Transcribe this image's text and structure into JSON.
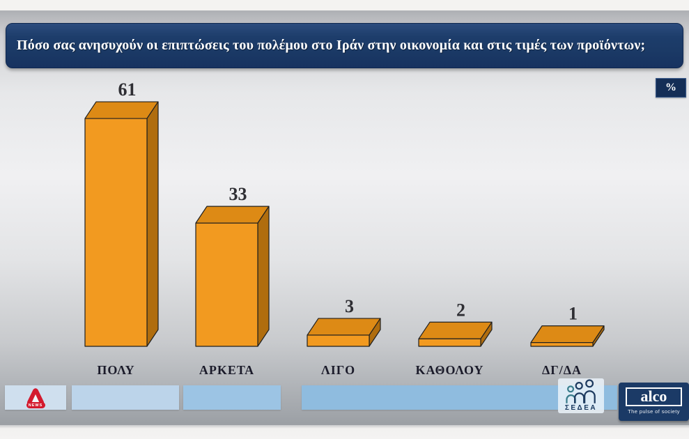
{
  "header": {
    "title": "Πόσο σας ανησυχούν οι επιπτώσεις του πολέμου στο Ιράν στην οικονομία και στις τιμές των προϊόντων;"
  },
  "unit_badge": "%",
  "chart_data": {
    "type": "bar",
    "style": "3d",
    "title": "Πόσο σας ανησυχούν οι επιπτώσεις του πολέμου στο Ιράν στην οικονομία και στις τιμές των προϊόντων;",
    "categories": [
      "ΠΟΛΥ",
      "ΑΡΚΕΤΑ",
      "ΛΙΓΟ",
      "ΚΑΘΟΛΟΥ",
      "ΔΓ/ΔΑ"
    ],
    "values": [
      61,
      33,
      3,
      2,
      1
    ],
    "unit": "%",
    "xlabel": "",
    "ylabel": "",
    "ylim": [
      0,
      65
    ],
    "grid": false,
    "legend": false,
    "data_labels": "above bars"
  },
  "footer": {
    "alpha_news": {
      "news_label": "NEWS"
    },
    "sedea": {
      "label": "ΣΕΔΕΑ"
    },
    "alco": {
      "name": "alco",
      "tagline": "The pulse of society"
    }
  },
  "colors": {
    "navy": "#1b3a66",
    "navy_dark": "#142e56",
    "title_text": "#ffffff",
    "bar_front": "#f29a20",
    "bar_top": "#dd8a15",
    "bar_side": "#b06d0e",
    "bar_outline": "#1f1f1f",
    "label_text": "#2e2e33",
    "category_text": "#1b1b2a",
    "alpha_red": "#d31a2e",
    "sedea_teal": "#3a7d8c",
    "panel1": "#cfdfee",
    "panel2": "#bcd4ea",
    "panel3": "#9cc4e4",
    "panel4": "#8fbcdf"
  }
}
